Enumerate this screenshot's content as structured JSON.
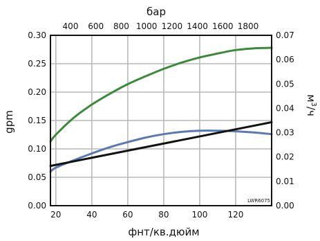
{
  "chart_data": {
    "type": "line",
    "x_axis_bottom": {
      "label": "фнт/кв.дюйм",
      "ticks": [
        20,
        40,
        60,
        80,
        100,
        120
      ],
      "range": [
        17,
        140
      ]
    },
    "x_axis_top": {
      "label": "бар",
      "ticks": [
        400,
        600,
        800,
        1000,
        1200,
        1400,
        1600,
        1800
      ],
      "tick_labels": [
        "400",
        "600",
        "800",
        "1000",
        "1200",
        "1400",
        "1600",
        "1800"
      ]
    },
    "y_axis_left": {
      "label": "gpm",
      "ticks": [
        0.0,
        0.05,
        0.1,
        0.15,
        0.2,
        0.25,
        0.3
      ],
      "tick_labels": [
        "0.00",
        "0.05",
        "0.10",
        "0.15",
        "0.20",
        "0.25",
        "0.30"
      ],
      "range": [
        0,
        0.3
      ]
    },
    "y_axis_right": {
      "label_main": "м",
      "label_sup": "3",
      "label_tail": "/ч",
      "ticks": [
        0.0,
        0.01,
        0.02,
        0.03,
        0.04,
        0.05,
        0.06,
        0.07
      ],
      "tick_labels": [
        "0.00",
        "0.01",
        "0.02",
        "0.03",
        "0.04",
        "0.05",
        "0.06",
        "0.07"
      ],
      "range": [
        0,
        0.07
      ]
    },
    "grid": true,
    "series": [
      {
        "color": "#3a8a3a",
        "x": [
          17,
          20,
          30,
          40,
          50,
          60,
          70,
          80,
          90,
          100,
          110,
          120,
          130,
          140
        ],
        "y": [
          0.113,
          0.125,
          0.155,
          0.178,
          0.197,
          0.214,
          0.228,
          0.241,
          0.252,
          0.261,
          0.268,
          0.274,
          0.277,
          0.278
        ]
      },
      {
        "color": "#5b78b5",
        "x": [
          17,
          20,
          30,
          40,
          50,
          60,
          70,
          80,
          90,
          100,
          110,
          120,
          130,
          140
        ],
        "y": [
          0.06,
          0.067,
          0.08,
          0.092,
          0.103,
          0.112,
          0.12,
          0.126,
          0.13,
          0.132,
          0.132,
          0.131,
          0.129,
          0.126
        ]
      },
      {
        "color": "#111111",
        "x": [
          17,
          140
        ],
        "y": [
          0.07,
          0.147
        ]
      }
    ],
    "annotations": [
      {
        "text": "LWR6075"
      }
    ]
  }
}
